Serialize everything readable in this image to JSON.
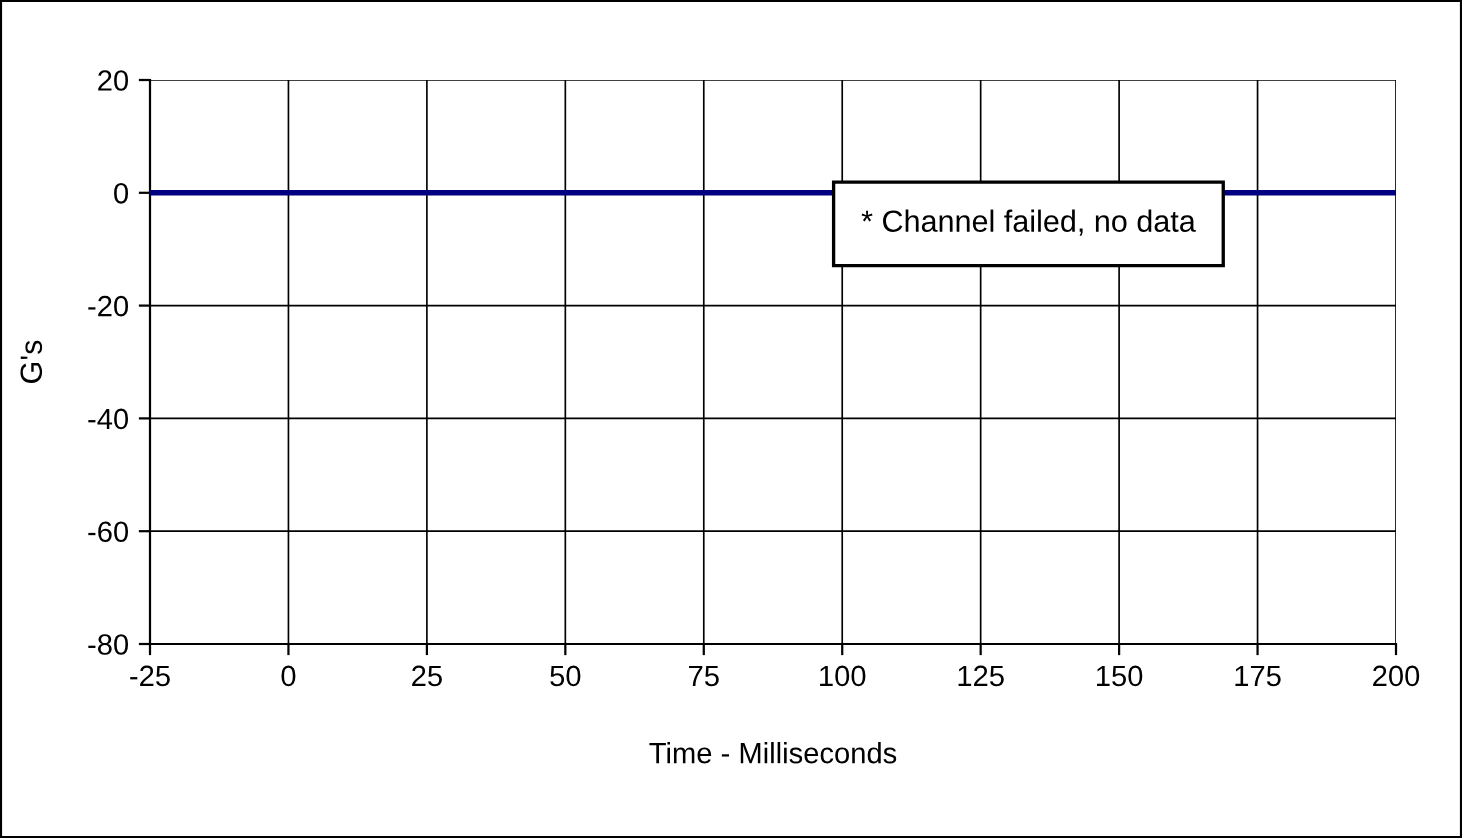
{
  "chart_data": {
    "type": "line",
    "xlabel": "Time - Milliseconds",
    "ylabel": "G's",
    "x": [
      -25,
      200
    ],
    "series": [
      {
        "color": "#000080",
        "values": [
          0,
          0
        ]
      }
    ],
    "xlim": [
      -25,
      200
    ],
    "xticks": [
      -25,
      0,
      25,
      50,
      75,
      100,
      125,
      150,
      175,
      200
    ],
    "ylim": [
      -80,
      20
    ],
    "yticks": [
      -80,
      -60,
      -40,
      -20,
      0,
      20
    ],
    "grid": true,
    "legend": false,
    "marker": "none",
    "line_style": "solid",
    "annotations": [
      "* Channel failed, no data"
    ]
  }
}
